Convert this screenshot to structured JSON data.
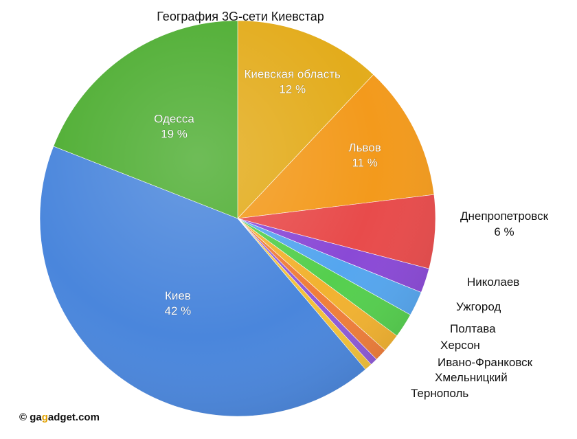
{
  "chart_data": {
    "type": "pie",
    "title": "География 3G-сети Киевстар",
    "start_angle_deg": 0,
    "direction": "clockwise",
    "slices": [
      {
        "label": "Киевская область",
        "value": 12,
        "value_label": "12 %",
        "color": "#e3ac1c",
        "label_pos": "inside"
      },
      {
        "label": "Львов",
        "value": 11,
        "value_label": "11 %",
        "color": "#f39a1c",
        "label_pos": "inside"
      },
      {
        "label": "Днепропетровск",
        "value": 6,
        "value_label": "6 %",
        "color": "#e84b4b",
        "label_pos": "outside"
      },
      {
        "label": "Николаев",
        "value": 2,
        "value_label": "",
        "color": "#8a49d6",
        "label_pos": "outside"
      },
      {
        "label": "Ужгород",
        "value": 2,
        "value_label": "",
        "color": "#55a6ef",
        "label_pos": "outside"
      },
      {
        "label": "Полтава",
        "value": 2,
        "value_label": "",
        "color": "#55cf4e",
        "label_pos": "outside"
      },
      {
        "label": "Херсон",
        "value": 1.5,
        "value_label": "",
        "color": "#f2b230",
        "label_pos": "outside"
      },
      {
        "label": "Ивано-Франковск",
        "value": 1,
        "value_label": "",
        "color": "#f07e3a",
        "label_pos": "outside"
      },
      {
        "label": "Хмельницкий",
        "value": 0.6,
        "value_label": "",
        "color": "#8f5ad8",
        "label_pos": "outside"
      },
      {
        "label": "Тернополь",
        "value": 0.6,
        "value_label": "",
        "color": "#f3c23a",
        "label_pos": "outside"
      },
      {
        "label": "Киев",
        "value": 42,
        "value_label": "42 %",
        "color": "#4a86dc",
        "label_pos": "inside"
      },
      {
        "label": "Одесса",
        "value": 19,
        "value_label": "19 %",
        "color": "#4fae33",
        "label_pos": "inside"
      }
    ]
  },
  "watermark": {
    "prefix": "© ga",
    "accent": "g",
    "suffix": "adget.com"
  }
}
